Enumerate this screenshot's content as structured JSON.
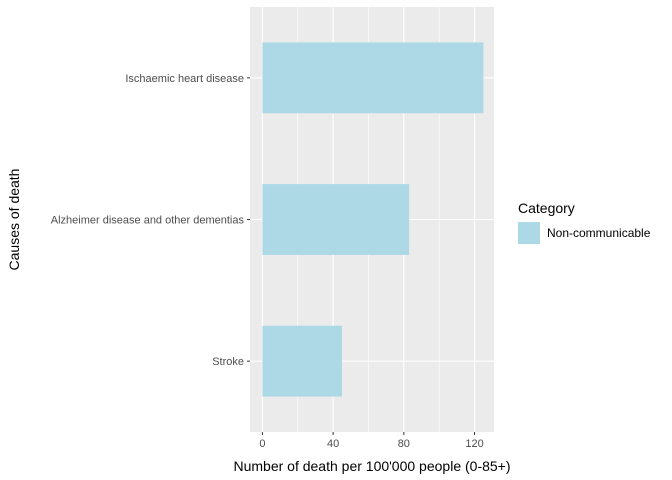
{
  "chart_data": {
    "type": "bar",
    "orientation": "horizontal",
    "categories": [
      "Ischaemic heart disease",
      "Alzheimer disease and other dementias",
      "Stroke"
    ],
    "series": [
      {
        "name": "Non-communicable",
        "values": [
          125,
          83,
          45
        ]
      }
    ],
    "xlabel": "Number of death per 100'000 people (0-85+)",
    "ylabel": "Causes of death",
    "xlim": [
      -7,
      131
    ],
    "xticks": [
      0,
      40,
      80,
      120
    ],
    "xtick_labels": [
      "0",
      "40",
      "80",
      "120"
    ],
    "grid": true,
    "legend": {
      "title": "Category",
      "position": "right",
      "entries": [
        "Non-communicable"
      ]
    },
    "colors": {
      "bar": "#add8e6",
      "panel": "#ebebeb",
      "grid": "#ffffff"
    }
  }
}
